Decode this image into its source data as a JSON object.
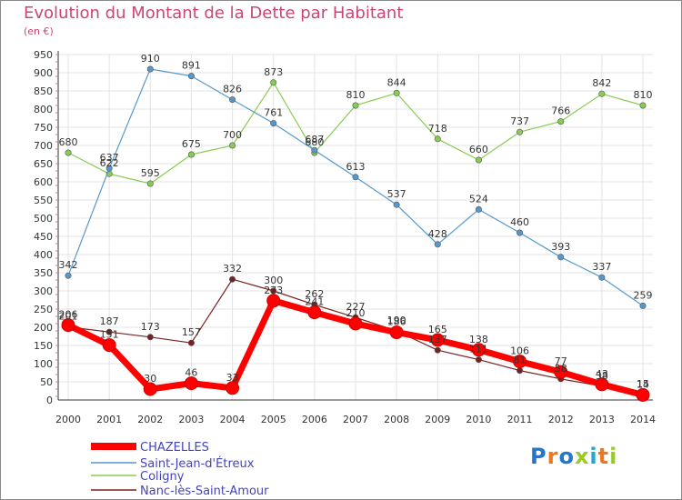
{
  "chart_data": {
    "type": "line",
    "title": "Evolution du Montant de la Dette par Habitant",
    "subtitle": "(en €)",
    "x": [
      "2000",
      "2001",
      "2002",
      "2003",
      "2004",
      "2005",
      "2006",
      "2007",
      "2008",
      "2009",
      "2010",
      "2011",
      "2012",
      "2013",
      "2014"
    ],
    "ylim": [
      0,
      950
    ],
    "yticks": [
      0,
      50,
      100,
      150,
      200,
      250,
      300,
      350,
      400,
      450,
      500,
      550,
      600,
      650,
      700,
      750,
      800,
      850,
      900,
      950
    ],
    "grid": true,
    "legend_position": "bottom-left",
    "series": [
      {
        "name": "CHAZELLES",
        "color": "#ff0000",
        "values": [
          206,
          151,
          30,
          46,
          33,
          273,
          241,
          210,
          186,
          165,
          138,
          106,
          77,
          43,
          14
        ]
      },
      {
        "name": "Saint-Jean-d'Étreux",
        "color": "#5599cc",
        "values": [
          342,
          637,
          910,
          891,
          826,
          761,
          687,
          613,
          537,
          428,
          524,
          460,
          393,
          337,
          259
        ]
      },
      {
        "name": "Coligny",
        "color": "#88cc55",
        "values": [
          680,
          622,
          595,
          675,
          700,
          873,
          680,
          810,
          844,
          718,
          660,
          737,
          766,
          842,
          810
        ]
      },
      {
        "name": "Nanc-lès-Saint-Amour",
        "color": "#772222",
        "values": [
          201,
          187,
          173,
          157,
          332,
          300,
          262,
          227,
          190,
          137,
          111,
          81,
          58,
          38,
          15
        ]
      }
    ]
  },
  "logo": {
    "text": "Proxiti",
    "colors": [
      "#2277cc",
      "#ee7722",
      "#2277cc",
      "#99cc22",
      "#22aacc",
      "#ee7722",
      "#99cc22"
    ]
  }
}
